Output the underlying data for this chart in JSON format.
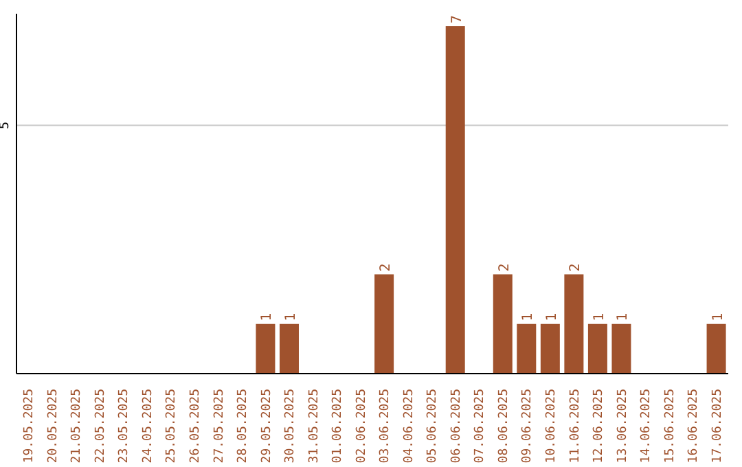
{
  "chart_data": {
    "type": "bar",
    "categories": [
      "19.05.2025",
      "20.05.2025",
      "21.05.2025",
      "22.05.2025",
      "23.05.2025",
      "24.05.2025",
      "25.05.2025",
      "26.05.2025",
      "27.05.2025",
      "28.05.2025",
      "29.05.2025",
      "30.05.2025",
      "31.05.2025",
      "01.06.2025",
      "02.06.2025",
      "03.06.2025",
      "04.06.2025",
      "05.06.2025",
      "06.06.2025",
      "07.06.2025",
      "08.06.2025",
      "09.06.2025",
      "10.06.2025",
      "11.06.2025",
      "12.06.2025",
      "13.06.2025",
      "14.06.2025",
      "15.06.2025",
      "16.06.2025",
      "17.06.2025"
    ],
    "values": [
      0,
      0,
      0,
      0,
      0,
      0,
      0,
      0,
      0,
      0,
      1,
      1,
      0,
      0,
      0,
      2,
      0,
      0,
      7,
      0,
      2,
      1,
      1,
      2,
      1,
      1,
      0,
      0,
      0,
      1
    ],
    "value_labels": [
      null,
      null,
      null,
      null,
      null,
      null,
      null,
      null,
      null,
      null,
      "1",
      "1",
      null,
      null,
      null,
      "2",
      null,
      null,
      "7",
      null,
      "2",
      "1",
      "1",
      "2",
      "1",
      "1",
      null,
      null,
      null,
      "1"
    ],
    "color": "#a0522d",
    "ylim": [
      0,
      7.25
    ],
    "yticks": [
      5
    ],
    "grid": "y"
  }
}
